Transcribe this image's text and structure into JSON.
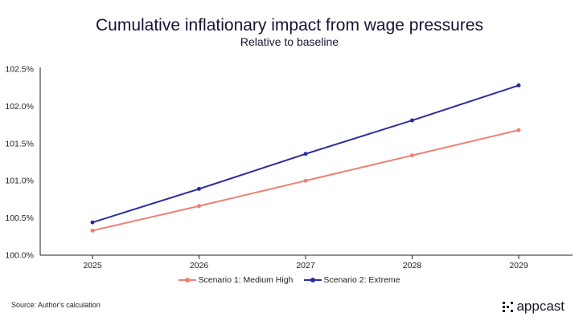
{
  "chart_data": {
    "type": "line",
    "title": "Cumulative inflationary impact from wage pressures",
    "subtitle": "Relative to baseline",
    "categories": [
      "2025",
      "2026",
      "2027",
      "2028",
      "2029"
    ],
    "ylim": [
      100.0,
      102.5
    ],
    "yticks": [
      100.0,
      100.5,
      101.0,
      101.5,
      102.0,
      102.5
    ],
    "ytick_labels": [
      "100.0%",
      "100.5%",
      "101.0%",
      "101.5%",
      "102.0%",
      "102.5%"
    ],
    "series": [
      {
        "name": "Scenario 1:  Medium High",
        "color": "#f07f73",
        "values": [
          100.33,
          100.66,
          101.0,
          101.34,
          101.68
        ]
      },
      {
        "name": "Scenario 2: Extreme",
        "color": "#2b2ba0",
        "values": [
          100.44,
          100.89,
          101.36,
          101.81,
          102.28
        ]
      }
    ],
    "legend_position": "bottom"
  },
  "source": "Source: Author's calculation",
  "brand": "appcast"
}
